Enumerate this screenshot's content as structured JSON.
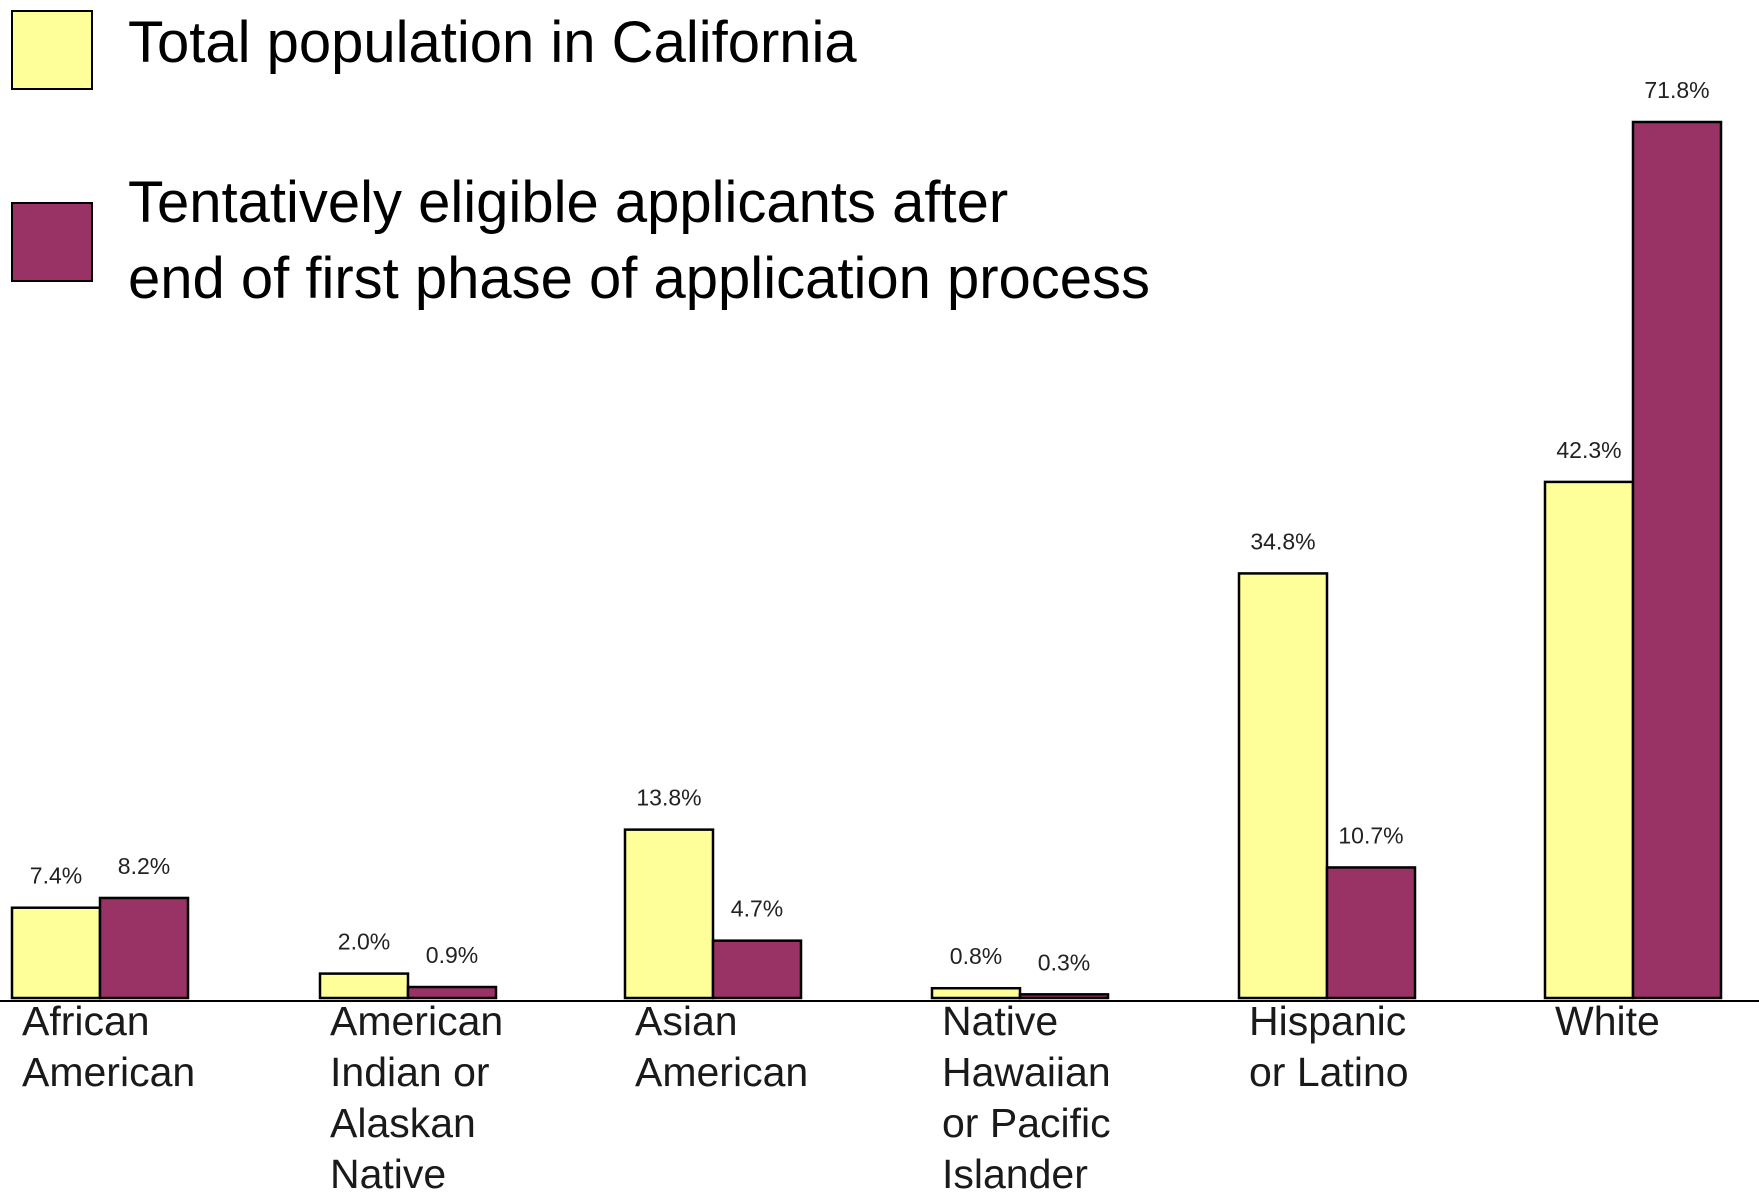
{
  "chart_data": {
    "type": "bar",
    "categories": [
      [
        "African",
        "American"
      ],
      [
        "American",
        "Indian or",
        "Alaskan",
        "Native"
      ],
      [
        "Asian",
        "American"
      ],
      [
        "Native",
        "Hawaiian",
        "or Pacific",
        "Islander"
      ],
      [
        "Hispanic",
        "or Latino"
      ],
      [
        "White"
      ]
    ],
    "series": [
      {
        "name_lines": [
          "Total population in California"
        ],
        "color": "#ffff99",
        "values": [
          7.4,
          2.0,
          13.8,
          0.8,
          34.8,
          42.3
        ],
        "labels": [
          "7.4%",
          "2.0%",
          "13.8%",
          "0.8%",
          "34.8%",
          "42.3%"
        ]
      },
      {
        "name_lines": [
          "Tentatively eligible applicants after",
          "end of first phase of application process"
        ],
        "color": "#993366",
        "values": [
          8.2,
          0.9,
          4.7,
          0.3,
          10.7,
          71.8
        ],
        "labels": [
          "8.2%",
          "0.9%",
          "4.7%",
          "0.3%",
          "10.7%",
          "71.8%"
        ]
      }
    ],
    "ylim": [
      0,
      71.8
    ],
    "grid": false,
    "legend_position": "top-left"
  }
}
